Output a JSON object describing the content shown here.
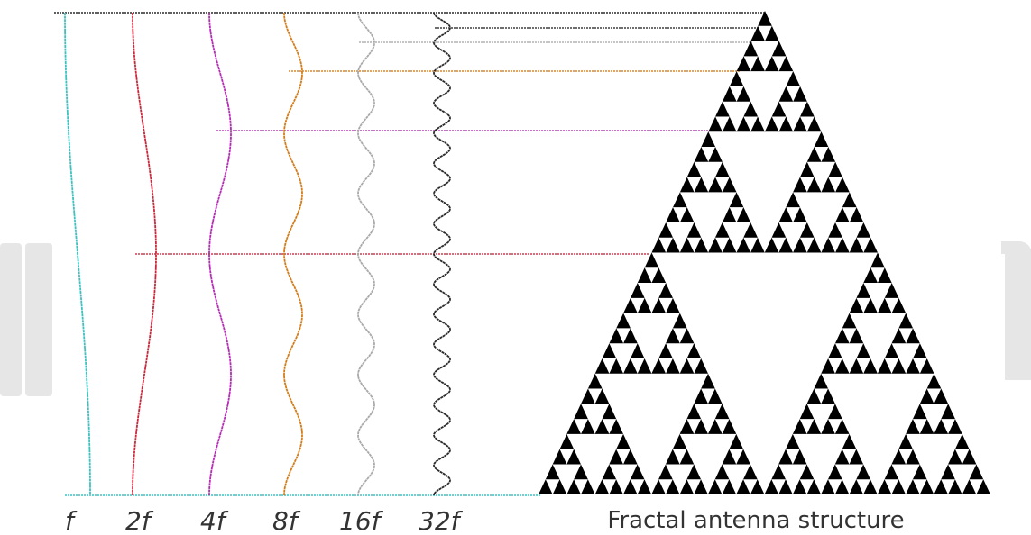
{
  "waves": [
    {
      "label": "f",
      "color": "#3ec1c1"
    },
    {
      "label": "2f",
      "color": "#c8283a"
    },
    {
      "label": "4f",
      "color": "#b52bb5"
    },
    {
      "label": "8f",
      "color": "#d37d1a"
    },
    {
      "label": "16f",
      "color": "#a9a9a9"
    },
    {
      "label": "32f",
      "color": "#2a2a2a"
    }
  ],
  "fractal": {
    "caption": "Fractal antenna structure",
    "color": "#000000",
    "iterations": 5
  },
  "colors": {
    "background": "#ffffff",
    "baseline_left": "#3ec1c1",
    "baseline_top": "#2a2a2a",
    "watermark": "#e6e6e6"
  }
}
